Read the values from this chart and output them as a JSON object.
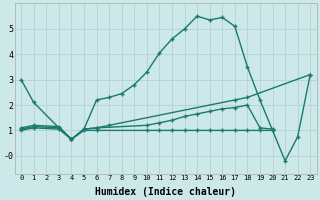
{
  "xlabel": "Humidex (Indice chaleur)",
  "background_color": "#cce8e8",
  "grid_color": "#b8d4d4",
  "line_color": "#1a7a6e",
  "xlim": [
    -0.5,
    23.5
  ],
  "ylim": [
    -0.7,
    6.0
  ],
  "xticks": [
    0,
    1,
    2,
    3,
    4,
    5,
    6,
    7,
    8,
    9,
    10,
    11,
    12,
    13,
    14,
    15,
    16,
    17,
    18,
    19,
    20,
    21,
    22,
    23
  ],
  "yticks": [
    0,
    1,
    2,
    3,
    4,
    5
  ],
  "ytick_labels": [
    "-0",
    "1",
    "2",
    "3",
    "4",
    "5"
  ],
  "curve1_x": [
    0,
    1,
    3,
    4,
    5,
    6,
    7,
    8,
    9,
    10,
    11,
    12,
    13,
    14,
    15,
    16,
    17,
    18,
    19,
    20,
    21,
    22,
    23
  ],
  "curve1_y": [
    3.0,
    2.1,
    1.1,
    0.65,
    1.05,
    2.2,
    2.3,
    2.45,
    2.8,
    3.3,
    4.05,
    4.6,
    5.0,
    5.5,
    5.35,
    5.45,
    5.1,
    3.5,
    2.2,
    1.0,
    -0.2,
    0.75,
    3.2
  ],
  "curve2_x": [
    0,
    1,
    3,
    4,
    5,
    6,
    7,
    17,
    18,
    23
  ],
  "curve2_y": [
    1.1,
    1.2,
    1.15,
    0.65,
    1.05,
    1.1,
    1.2,
    2.2,
    2.3,
    3.2
  ],
  "curve3_x": [
    0,
    1,
    3,
    4,
    5,
    6,
    10,
    11,
    12,
    13,
    14,
    15,
    16,
    17,
    18,
    19,
    20
  ],
  "curve3_y": [
    1.05,
    1.15,
    1.1,
    0.65,
    1.05,
    1.1,
    1.2,
    1.3,
    1.4,
    1.55,
    1.65,
    1.75,
    1.85,
    1.9,
    2.0,
    1.1,
    1.05
  ],
  "curve4_x": [
    0,
    1,
    3,
    4,
    5,
    6,
    10,
    11,
    12,
    13,
    14,
    15,
    16,
    17,
    18,
    19,
    20
  ],
  "curve4_y": [
    1.0,
    1.1,
    1.05,
    0.65,
    1.0,
    1.0,
    1.0,
    1.0,
    1.0,
    1.0,
    1.0,
    1.0,
    1.0,
    1.0,
    1.0,
    1.0,
    1.0
  ]
}
